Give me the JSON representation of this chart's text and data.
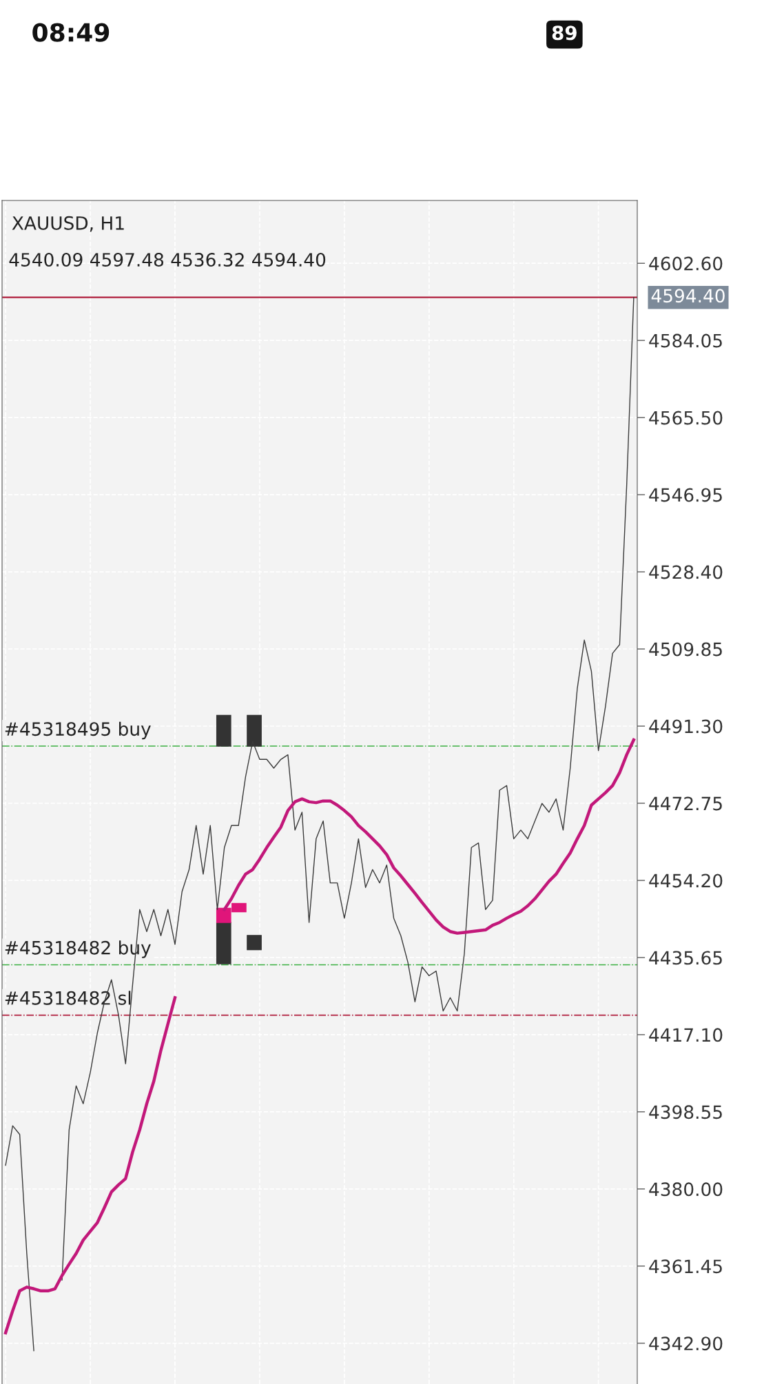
{
  "chart_data": {
    "type": "line",
    "title": "XAUUSD, H1",
    "subtitle": "4540.09 4597.48 4536.32 4594.40",
    "categories": [
      null,
      null,
      null,
      null,
      null,
      null,
      null,
      null,
      null,
      null,
      null,
      null,
      null,
      null,
      null,
      null,
      null,
      null,
      null,
      null,
      null,
      null,
      null,
      null,
      null,
      null,
      null,
      null,
      null,
      null,
      null,
      null,
      null,
      null,
      null,
      null,
      null,
      null,
      null,
      null,
      null,
      null,
      null,
      null,
      null,
      null,
      null,
      null,
      null,
      null,
      null,
      null,
      null,
      null,
      null,
      null,
      null,
      null,
      null,
      null,
      null,
      null,
      null,
      null,
      null,
      null,
      null,
      null,
      null,
      null,
      null,
      null,
      null,
      null,
      null,
      null,
      null,
      null,
      null,
      null,
      null,
      null,
      null,
      null,
      null,
      null,
      null,
      null,
      null,
      null
    ],
    "series": [
      {
        "color": "#3a3a3a",
        "values": [
          4385.7,
          4395.2,
          4393.1,
          4364.5,
          4341.1,
          null,
          null,
          null,
          null,
          null,
          null,
          null,
          null,
          null,
          null,
          null,
          null,
          null,
          null,
          null,
          null,
          null,
          null,
          null,
          null,
          null,
          null,
          null,
          null,
          null,
          null,
          null,
          null,
          null,
          null,
          null,
          null,
          null,
          null,
          null,
          null,
          null,
          null,
          null,
          null,
          null,
          null,
          null,
          null,
          null,
          null,
          null,
          null,
          null,
          null,
          null,
          null,
          null,
          null,
          null,
          null,
          null,
          null,
          null,
          null,
          null,
          null,
          null,
          null,
          null,
          null,
          null,
          null,
          null,
          null,
          null,
          null,
          null,
          null,
          null,
          null,
          null,
          null,
          null,
          null,
          null,
          null,
          null,
          null,
          null
        ]
      },
      {
        "color": "#3a3a3a",
        "values": [
          null,
          null,
          null,
          null,
          null,
          null,
          null,
          null,
          4358.1,
          4394.2,
          4404.8,
          4400.5,
          4408.0,
          4417.5,
          4425.0,
          4430.3,
          4421.8,
          4410.1,
          4429.2,
          4447.2,
          4441.9,
          4447.2,
          4440.9,
          4447.2,
          4438.8,
          4451.5,
          4456.8,
          4467.4,
          4455.7,
          4467.4,
          4447.2,
          4462.1,
          4467.4,
          4467.4,
          4479.1,
          4487.6,
          4483.3,
          4483.3,
          4481.2,
          4483.3,
          4484.4,
          4466.3,
          4470.6,
          4444.1,
          4464.2,
          4468.5,
          4453.6,
          4453.6,
          4445.1,
          4453.6,
          4464.2,
          4452.5,
          4456.8,
          4453.6,
          4457.9,
          4445.1,
          4440.9,
          4434.5,
          4425.0,
          4433.4,
          4431.3,
          4432.4,
          4422.8,
          4426.0,
          4422.8,
          4436.6,
          4462.1,
          4463.2,
          4447.2,
          4449.4,
          4475.9,
          4477.0,
          4464.2,
          4466.3,
          4464.2,
          4468.5,
          4472.7,
          4470.6,
          4473.8,
          4466.3,
          4481.2,
          4500.3,
          4512.0,
          4504.5,
          4485.4,
          4496.1,
          4508.8,
          4510.9,
          4549.1,
          4594.4
        ]
      },
      {
        "color": "#c2187a",
        "values": [
          4345.4,
          4350.7,
          4355.5,
          4356.4,
          4356.0,
          4355.5,
          4355.5,
          4356.0,
          4359.2,
          4361.9,
          4364.5,
          4367.7,
          4369.8,
          4371.9,
          4375.5,
          4379.3,
          4381.0,
          4382.5,
          4388.9,
          4394.2,
          4400.5,
          4405.9,
          4413.3,
          4419.7,
          4426.0,
          null,
          null,
          null,
          null,
          null,
          null,
          null,
          null,
          null,
          null,
          null,
          null,
          null,
          null,
          null,
          null,
          null,
          null,
          null,
          null,
          null,
          null,
          null,
          null,
          null,
          null,
          null,
          null,
          null,
          null,
          null,
          null,
          null,
          null,
          null,
          null,
          null,
          null,
          null,
          null,
          null,
          null,
          null,
          null,
          null,
          null,
          null,
          null,
          null,
          null,
          null,
          null,
          null,
          null,
          null,
          null,
          null,
          null,
          null,
          null,
          null,
          null,
          null,
          null,
          null
        ]
      },
      {
        "color": "#c2187a",
        "values": [
          null,
          null,
          null,
          null,
          null,
          null,
          null,
          null,
          null,
          null,
          null,
          null,
          null,
          null,
          null,
          null,
          null,
          null,
          null,
          null,
          null,
          null,
          null,
          null,
          null,
          null,
          null,
          null,
          null,
          null,
          null,
          4447.2,
          4449.8,
          4453.0,
          4455.7,
          4456.8,
          4459.3,
          4462.1,
          4464.6,
          4467.0,
          4471.0,
          4473.1,
          4473.8,
          4473.1,
          4472.9,
          4473.3,
          4473.3,
          4472.3,
          4471.0,
          4469.5,
          4467.4,
          4465.9,
          4464.2,
          4462.5,
          4460.4,
          4457.2,
          4455.3,
          4453.2,
          4451.1,
          4448.9,
          4446.8,
          4444.7,
          4443.0,
          4441.9,
          4441.5,
          4441.7,
          4441.9,
          4442.1,
          4442.3,
          4443.4,
          4444.1,
          4445.1,
          4446.0,
          4446.8,
          4448.1,
          4449.8,
          4451.9,
          4454.0,
          4455.7,
          4458.3,
          4460.8,
          4464.2,
          4467.4,
          4472.3,
          4473.8,
          4475.3,
          4477.0,
          4480.1,
          4484.4,
          4488.0
        ]
      }
    ],
    "ylim": [
      4333.1,
      4617.7
    ],
    "yticks": [
      {
        "value": 4602.6,
        "label": "4602.60"
      },
      {
        "value": 4584.05,
        "label": "4584.05"
      },
      {
        "value": 4565.5,
        "label": "4565.50"
      },
      {
        "value": 4546.95,
        "label": "4546.95"
      },
      {
        "value": 4528.4,
        "label": "4528.40"
      },
      {
        "value": 4509.85,
        "label": "4509.85"
      },
      {
        "value": 4491.3,
        "label": "4491.30"
      },
      {
        "value": 4472.75,
        "label": "4472.75"
      },
      {
        "value": 4454.2,
        "label": "4454.20"
      },
      {
        "value": 4435.65,
        "label": "4435.65"
      },
      {
        "value": 4417.1,
        "label": "4417.10"
      },
      {
        "value": 4398.55,
        "label": "4398.55"
      },
      {
        "value": 4380.0,
        "label": "4380.00"
      },
      {
        "value": 4361.45,
        "label": "4361.45"
      },
      {
        "value": 4342.9,
        "label": "4342.90"
      }
    ],
    "ref_lines": [
      {
        "axis": "y",
        "value": 4594.4,
        "label": "4594.40",
        "color": "#b01e3c",
        "line_style": "solid"
      },
      {
        "axis": "y",
        "value": 4486.5,
        "label": "#45318495 buy",
        "color": "#3cb043",
        "line_style": "dashdot"
      },
      {
        "axis": "y",
        "value": 4433.9,
        "label": "#45318482 buy",
        "color": "#3cb043",
        "line_style": "dashdot"
      },
      {
        "axis": "y",
        "value": 4421.8,
        "label": "#45318482 sl",
        "color": "#b01e3c",
        "line_style": "dashdot"
      }
    ],
    "annotations": [
      "08:49",
      "89"
    ],
    "grid": true,
    "marker": "none",
    "line_style": "solid"
  }
}
